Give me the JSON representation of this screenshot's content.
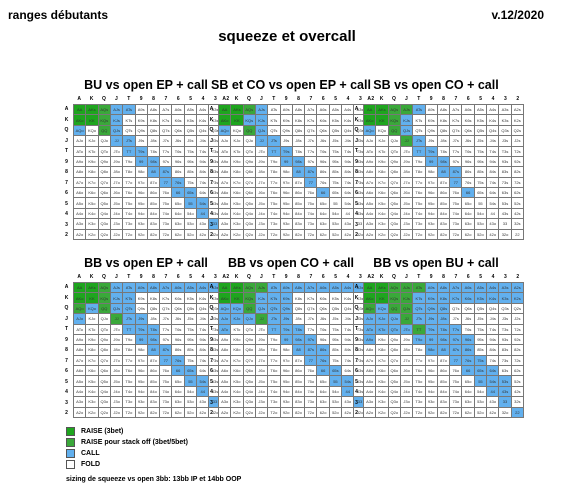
{
  "header": {
    "left": "ranges débutants",
    "right": "v.12/2020"
  },
  "title": "squeeze et overcall",
  "ranks": [
    "A",
    "K",
    "Q",
    "J",
    "T",
    "9",
    "8",
    "7",
    "6",
    "5",
    "4",
    "3",
    "2"
  ],
  "panels": [
    {
      "title": "BU vs open EP + call",
      "raise": [
        "AA",
        "KK",
        "AKs",
        "AKo"
      ],
      "stack": [
        "QQ",
        "AQs",
        "KQs"
      ],
      "call": [
        "JJ",
        "TT",
        "99",
        "88",
        "77",
        "66",
        "55",
        "44",
        "33",
        "22",
        "AJs",
        "ATs",
        "KJs",
        "QJs",
        "JTs",
        "T9s",
        "98s",
        "87s",
        "76s",
        "65s",
        "54s",
        "AQo"
      ]
    },
    {
      "title": "SB et CO vs open EP + call",
      "raise": [
        "AA",
        "KK",
        "AKs",
        "AKo"
      ],
      "stack": [
        "QQ",
        "AQs"
      ],
      "call": [
        "JJ",
        "TT",
        "99",
        "88",
        "77",
        "66",
        "KQs",
        "AJs",
        "KJs",
        "QJs",
        "JTs",
        "T9s",
        "98s",
        "87s",
        "AQo"
      ]
    },
    {
      "title": "SB vs open CO + call",
      "raise": [
        "AA",
        "KK",
        "AKs",
        "AKo"
      ],
      "stack": [
        "QQ",
        "AQs",
        "KQs",
        "JJ",
        "AJs"
      ],
      "call": [
        "TT",
        "99",
        "88",
        "77",
        "66",
        "ATs",
        "KJs",
        "QJs",
        "JTs",
        "T9s",
        "98s",
        "87s",
        "AQo"
      ]
    },
    {
      "title": "BB vs open EP + call",
      "raise": [
        "AA",
        "KK",
        "AKs",
        "AKo"
      ],
      "stack": [
        "QQ",
        "AQs",
        "KQs",
        "AQo",
        "JJ"
      ],
      "call": [
        "TT",
        "99",
        "88",
        "77",
        "66",
        "55",
        "44",
        "33",
        "22",
        "AJs",
        "ATs",
        "A9s",
        "A8s",
        "A7s",
        "A6s",
        "A5s",
        "A4s",
        "A3s",
        "A2s",
        "KJs",
        "KTs",
        "QJs",
        "QTs",
        "JTs",
        "J9s",
        "T9s",
        "T8s",
        "98s",
        "87s",
        "76s",
        "65s",
        "54s",
        "KQo",
        "AJo"
      ]
    },
    {
      "title": "BB vs open CO + call",
      "raise": [
        "AA",
        "KK",
        "AKs",
        "AKo"
      ],
      "stack": [
        "QQ",
        "AQs",
        "KQs",
        "JJ",
        "AJs"
      ],
      "call": [
        "TT",
        "99",
        "88",
        "77",
        "66",
        "55",
        "44",
        "33",
        "22",
        "ATs",
        "A9s",
        "A8s",
        "A7s",
        "A6s",
        "A5s",
        "A4s",
        "A3s",
        "A2s",
        "KJs",
        "KTs",
        "K9s",
        "QJs",
        "QTs",
        "Q9s",
        "JTs",
        "J9s",
        "T9s",
        "T8s",
        "98s",
        "97s",
        "87s",
        "86s",
        "76s",
        "65s",
        "54s",
        "AQo",
        "KQo",
        "AJo",
        "ATo",
        "KJo",
        "QJo"
      ]
    },
    {
      "title": "BB vs open BU + call",
      "raise": [
        "AA",
        "KK",
        "AKs",
        "AKo"
      ],
      "stack": [
        "QQ",
        "AQs",
        "KQs",
        "JJ",
        "AJs",
        "KJs",
        "QJs",
        "TT",
        "ATs",
        "AQo"
      ],
      "call": [
        "99",
        "88",
        "77",
        "66",
        "55",
        "44",
        "33",
        "22",
        "A9s",
        "A8s",
        "A7s",
        "A6s",
        "A5s",
        "A4s",
        "A3s",
        "A2s",
        "KTs",
        "K9s",
        "K8s",
        "K7s",
        "K6s",
        "K5s",
        "K4s",
        "K3s",
        "K2s",
        "QTs",
        "Q9s",
        "Q8s",
        "JTs",
        "J9s",
        "J8s",
        "T9s",
        "T8s",
        "T7s",
        "98s",
        "97s",
        "96s",
        "87s",
        "86s",
        "76s",
        "75s",
        "65s",
        "64s",
        "54s",
        "53s",
        "43s",
        "KQo",
        "AJo",
        "ATo",
        "A9o",
        "KJo",
        "KTo",
        "QJo",
        "QTo",
        "JTo",
        "T9o",
        "98o"
      ]
    }
  ],
  "legend": [
    {
      "color": "#1ea51e",
      "label": "RAISE (3bet)"
    },
    {
      "color": "#3aa83a",
      "label": "RAISE pour stack off (3bet/5bet)"
    },
    {
      "color": "#62b0ee",
      "label": "CALL"
    },
    {
      "color": "#ffffff",
      "label": "FOLD"
    }
  ],
  "sizing": "sizing de squeeze vs open 3bb: 13bb IP et 14bb OOP"
}
